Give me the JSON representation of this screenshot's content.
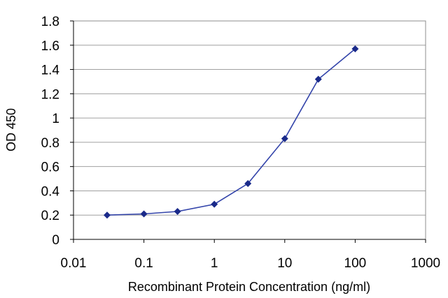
{
  "chart_data": {
    "type": "line",
    "x_scale": "log",
    "xlabel": "Recombinant Protein Concentration (ng/ml)",
    "ylabel": "OD 450",
    "xlim": [
      0.01,
      1000
    ],
    "ylim": [
      0,
      1.8
    ],
    "x_ticks": [
      0.01,
      0.1,
      1,
      10,
      100,
      1000
    ],
    "x_tick_labels": [
      "0.01",
      "0.1",
      "1",
      "10",
      "100",
      "1000"
    ],
    "y_ticks": [
      0,
      0.2,
      0.4,
      0.6,
      0.8,
      1,
      1.2,
      1.4,
      1.6,
      1.8
    ],
    "y_tick_labels": [
      "0",
      "0.2",
      "0.4",
      "0.6",
      "0.8",
      "1",
      "1.2",
      "1.4",
      "1.6",
      "1.8"
    ],
    "grid": {
      "horizontal": true,
      "vertical": false
    },
    "legend": "none",
    "series": [
      {
        "x": [
          0.03,
          0.1,
          0.3,
          1,
          3,
          10,
          30,
          100
        ],
        "y": [
          0.2,
          0.21,
          0.23,
          0.29,
          0.46,
          0.83,
          1.32,
          1.57
        ],
        "color": "#3344aa",
        "marker_color": "#1a2a8a"
      }
    ],
    "colors": {
      "frame": "#8c8c8c",
      "grid": "#a0a0a0",
      "axis": "#000000"
    }
  }
}
